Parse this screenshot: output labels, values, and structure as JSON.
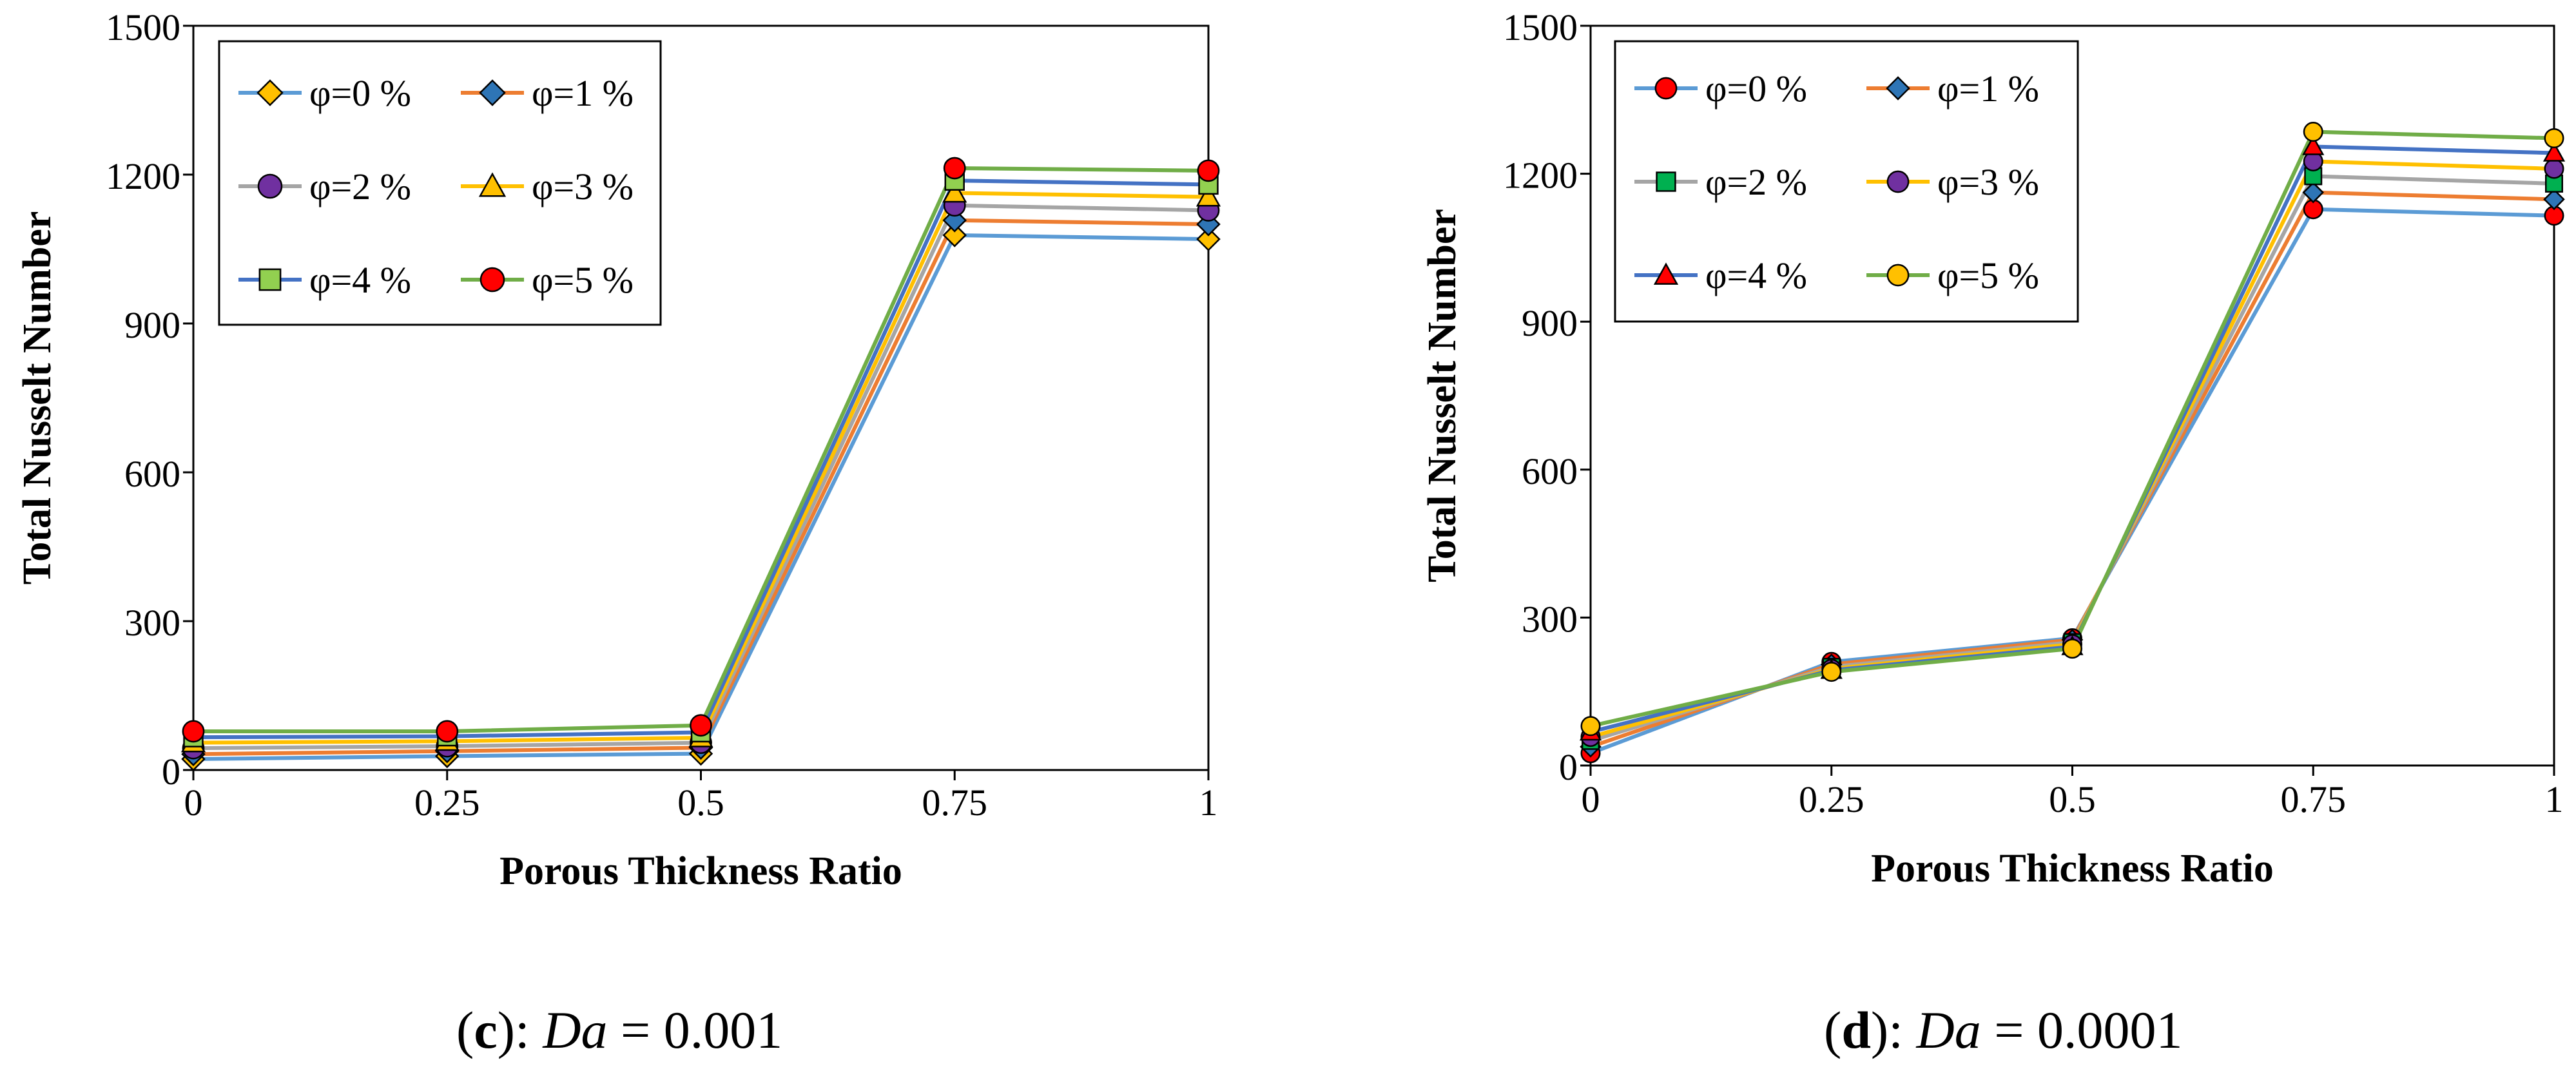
{
  "chart_data": [
    {
      "type": "line",
      "panel": "c",
      "xlabel": "Porous Thickness Ratio",
      "ylabel": "Total Nusselt Number",
      "x": [
        0,
        0.25,
        0.5,
        0.75,
        1
      ],
      "x_tick_labels": [
        "0",
        "0.25",
        "0.5",
        "0.75",
        "1"
      ],
      "y_ticks": [
        0,
        300,
        600,
        900,
        1200,
        1500
      ],
      "ylim": [
        0,
        1500
      ],
      "legend_position": "top-left",
      "legend_columns": 2,
      "series": [
        {
          "name": "φ=0 %",
          "color": "#5b9bd5",
          "marker": "diamond",
          "marker_color": "#ffc000",
          "values": [
            22,
            28,
            33,
            1078,
            1070
          ]
        },
        {
          "name": "φ=1 %",
          "color": "#ed7d31",
          "marker": "diamond",
          "marker_color": "#2e75b6",
          "values": [
            32,
            38,
            45,
            1108,
            1100
          ]
        },
        {
          "name": "φ=2 %",
          "color": "#a5a5a5",
          "marker": "circle",
          "marker_color": "#7030a0",
          "values": [
            44,
            48,
            55,
            1138,
            1128
          ]
        },
        {
          "name": "φ=3 %",
          "color": "#ffc000",
          "marker": "triangle",
          "marker_color": "#ffc000",
          "values": [
            55,
            58,
            65,
            1163,
            1155
          ]
        },
        {
          "name": "φ=4 %",
          "color": "#4472c4",
          "marker": "square",
          "marker_color": "#92d050",
          "values": [
            66,
            68,
            76,
            1188,
            1180
          ]
        },
        {
          "name": "φ=5 %",
          "color": "#70ad47",
          "marker": "circle",
          "marker_color": "#ff0000",
          "values": [
            78,
            78,
            90,
            1213,
            1208
          ]
        }
      ],
      "caption": {
        "letter": "c",
        "variable": "Da",
        "value": "0.001"
      }
    },
    {
      "type": "line",
      "panel": "d",
      "xlabel": "Porous Thickness Ratio",
      "ylabel": "Total Nusselt Number",
      "x": [
        0,
        0.25,
        0.5,
        0.75,
        1
      ],
      "x_tick_labels": [
        "0",
        "0.25",
        "0.5",
        "0.75",
        "1"
      ],
      "y_ticks": [
        0,
        300,
        600,
        900,
        1200,
        1500
      ],
      "ylim": [
        0,
        1500
      ],
      "legend_position": "top-left",
      "legend_columns": 2,
      "series": [
        {
          "name": "φ=0 %",
          "color": "#5b9bd5",
          "marker": "circle",
          "marker_color": "#ff0000",
          "values": [
            25,
            210,
            258,
            1128,
            1115
          ]
        },
        {
          "name": "φ=1 %",
          "color": "#ed7d31",
          "marker": "diamond",
          "marker_color": "#2e75b6",
          "values": [
            38,
            205,
            255,
            1162,
            1148
          ]
        },
        {
          "name": "φ=2 %",
          "color": "#a5a5a5",
          "marker": "square",
          "marker_color": "#00b050",
          "values": [
            50,
            200,
            250,
            1195,
            1180
          ]
        },
        {
          "name": "φ=3 %",
          "color": "#ffc000",
          "marker": "circle",
          "marker_color": "#7030a0",
          "values": [
            58,
            196,
            246,
            1225,
            1210
          ]
        },
        {
          "name": "φ=4 %",
          "color": "#4472c4",
          "marker": "triangle",
          "marker_color": "#ff0000",
          "values": [
            68,
            193,
            241,
            1255,
            1242
          ]
        },
        {
          "name": "φ=5 %",
          "color": "#70ad47",
          "marker": "circle",
          "marker_color": "#ffc000",
          "values": [
            80,
            190,
            237,
            1285,
            1272
          ]
        }
      ],
      "caption": {
        "letter": "d",
        "variable": "Da",
        "value": "0.0001"
      }
    }
  ]
}
